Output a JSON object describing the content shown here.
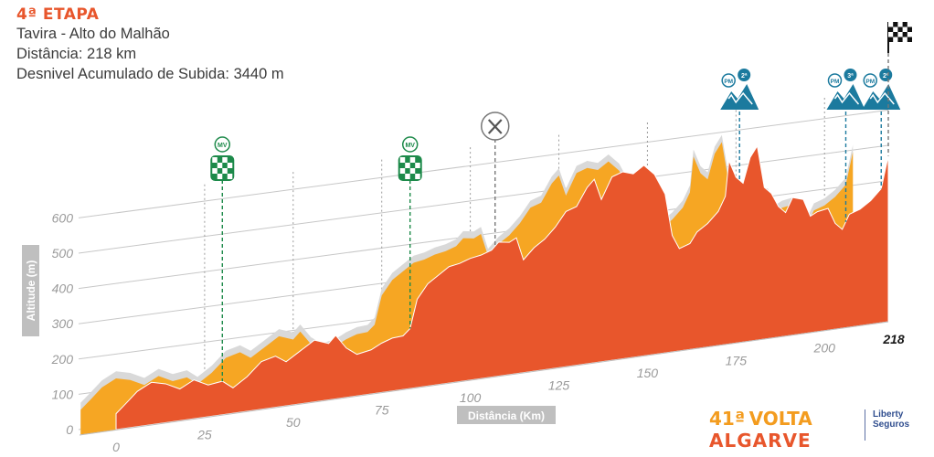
{
  "header": {
    "stage": "4ª ETAPA",
    "route": "Tavira - Alto do Malhão",
    "distance": "Distância: 218 km",
    "climb": "Desnivel Acumulado de Subida: 3440 m"
  },
  "chart_data": {
    "type": "area",
    "xlabel": "Distância (Km)",
    "ylabel": "Altitude (m)",
    "xlim": [
      0,
      218
    ],
    "ylim": [
      0,
      650
    ],
    "x_ticks": [
      0,
      25,
      50,
      75,
      100,
      125,
      150,
      175,
      200,
      218
    ],
    "x_tick_labels": [
      "0",
      "25",
      "50",
      "75",
      "100",
      "125",
      "150",
      "175",
      "200",
      "218"
    ],
    "y_ticks": [
      0,
      100,
      200,
      300,
      400,
      500,
      600
    ],
    "y_tick_labels": [
      "0",
      "100",
      "200",
      "300",
      "400",
      "500",
      "600"
    ],
    "colors": {
      "profile": "#e8562c",
      "top": "#f6a623",
      "shadow": "#d9d9d9",
      "marker": "#1d8a4a",
      "mountain": "#1b7a9e"
    },
    "series": [
      {
        "values": [
          [
            0,
            45
          ],
          [
            3,
            72
          ],
          [
            6,
            100
          ],
          [
            10,
            120
          ],
          [
            14,
            110
          ],
          [
            18,
            90
          ],
          [
            22,
            110
          ],
          [
            26,
            90
          ],
          [
            30,
            95
          ],
          [
            33,
            72
          ],
          [
            37,
            98
          ],
          [
            41,
            135
          ],
          [
            45,
            145
          ],
          [
            48,
            125
          ],
          [
            52,
            150
          ],
          [
            56,
            175
          ],
          [
            60,
            160
          ],
          [
            62,
            180
          ],
          [
            65,
            140
          ],
          [
            68,
            118
          ],
          [
            72,
            125
          ],
          [
            75,
            140
          ],
          [
            78,
            150
          ],
          [
            81,
            152
          ],
          [
            83,
            170
          ],
          [
            85,
            250
          ],
          [
            88,
            290
          ],
          [
            91,
            310
          ],
          [
            94,
            330
          ],
          [
            97,
            335
          ],
          [
            100,
            345
          ],
          [
            103,
            350
          ],
          [
            106,
            360
          ],
          [
            108,
            380
          ],
          [
            111,
            375
          ],
          [
            113,
            385
          ],
          [
            115,
            320
          ],
          [
            118,
            350
          ],
          [
            121,
            370
          ],
          [
            124,
            400
          ],
          [
            127,
            440
          ],
          [
            130,
            450
          ],
          [
            133,
            500
          ],
          [
            135,
            520
          ],
          [
            137,
            460
          ],
          [
            140,
            520
          ],
          [
            143,
            530
          ],
          [
            146,
            520
          ],
          [
            149,
            540
          ],
          [
            152,
            510
          ],
          [
            155,
            450
          ],
          [
            157,
            330
          ],
          [
            159,
            290
          ],
          [
            162,
            300
          ],
          [
            164,
            330
          ],
          [
            167,
            350
          ],
          [
            170,
            380
          ],
          [
            172,
            420
          ],
          [
            173,
            520
          ],
          [
            175,
            470
          ],
          [
            177,
            450
          ],
          [
            179,
            520
          ],
          [
            181,
            550
          ],
          [
            183,
            430
          ],
          [
            185,
            410
          ],
          [
            187,
            370
          ],
          [
            189,
            350
          ],
          [
            191,
            390
          ],
          [
            194,
            380
          ],
          [
            196,
            330
          ],
          [
            198,
            340
          ],
          [
            201,
            345
          ],
          [
            203,
            300
          ],
          [
            205,
            280
          ],
          [
            207,
            320
          ],
          [
            210,
            330
          ],
          [
            213,
            350
          ],
          [
            216,
            380
          ],
          [
            218,
            470
          ]
        ]
      }
    ],
    "annotations": [
      {
        "type": "sprint",
        "label": "MV",
        "x": 30
      },
      {
        "type": "sprint",
        "label": "MV",
        "x": 83
      },
      {
        "type": "feed",
        "label": "feed-zone",
        "x": 107
      },
      {
        "type": "climb",
        "label": "PM",
        "category": "2ª",
        "x": 176
      },
      {
        "type": "climb",
        "label": "PM",
        "category": "3ª",
        "x": 206
      },
      {
        "type": "climb",
        "label": "PM",
        "category": "2ª",
        "x": 216
      },
      {
        "type": "finish",
        "label": "finish",
        "x": 218
      }
    ]
  },
  "logo": {
    "edition": "41ª",
    "word1": "VOLTA",
    "word2": "ALGARVE",
    "sponsor_line1": "Liberty",
    "sponsor_line2": "Seguros"
  }
}
